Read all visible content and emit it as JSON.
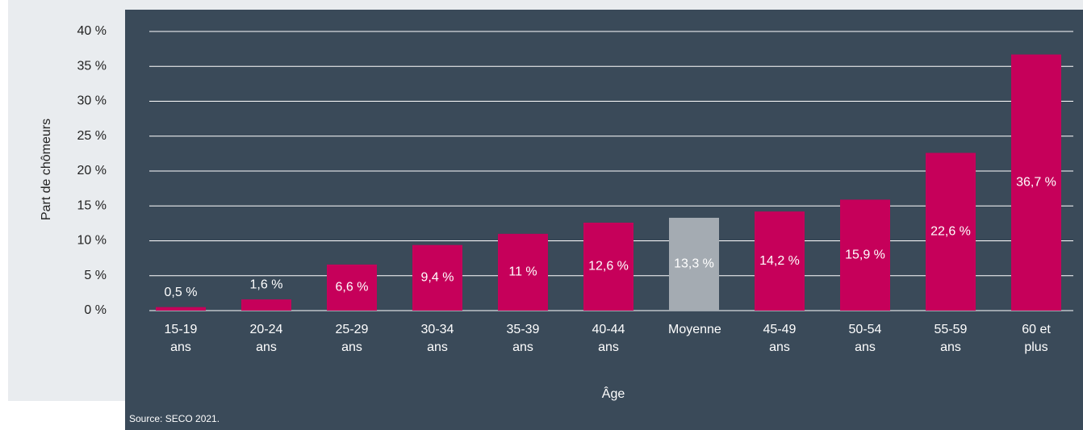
{
  "chart_data": {
    "type": "bar",
    "y_axis_label": "Part de chômeurs",
    "x_axis_label": "Âge",
    "source": "Source: SECO 2021.",
    "categories": [
      "15-19 ans",
      "20-24 ans",
      "25-29 ans",
      "30-34 ans",
      "35-39 ans",
      "40-44 ans",
      "Moyenne",
      "45-49 ans",
      "50-54 ans",
      "55-59 ans",
      "60 et plus"
    ],
    "values": [
      0.5,
      1.6,
      6.6,
      9.4,
      11,
      12.6,
      13.3,
      14.2,
      15.9,
      22.6,
      36.7
    ],
    "value_labels": [
      "0,5 %",
      "1,6 %",
      "6,6 %",
      "9,4 %",
      "11 %",
      "12,6 %",
      "13,3 %",
      "14,2 %",
      "15,9 %",
      "22,6 %",
      "36,7 %"
    ],
    "colors": [
      "#c6005a",
      "#c6005a",
      "#c6005a",
      "#c6005a",
      "#c6005a",
      "#c6005a",
      "#a4abb2",
      "#c6005a",
      "#c6005a",
      "#c6005a",
      "#c6005a"
    ],
    "ylim": [
      0,
      40
    ],
    "yticks": [
      {
        "value": 0,
        "label": "0 %"
      },
      {
        "value": 5,
        "label": "5 %"
      },
      {
        "value": 10,
        "label": "10 %"
      },
      {
        "value": 15,
        "label": "15 %"
      },
      {
        "value": 20,
        "label": "20 %"
      },
      {
        "value": 25,
        "label": "25 %"
      },
      {
        "value": 30,
        "label": "30 %"
      },
      {
        "value": 35,
        "label": "35 %"
      },
      {
        "value": 40,
        "label": "40 %"
      }
    ],
    "grid": true
  }
}
